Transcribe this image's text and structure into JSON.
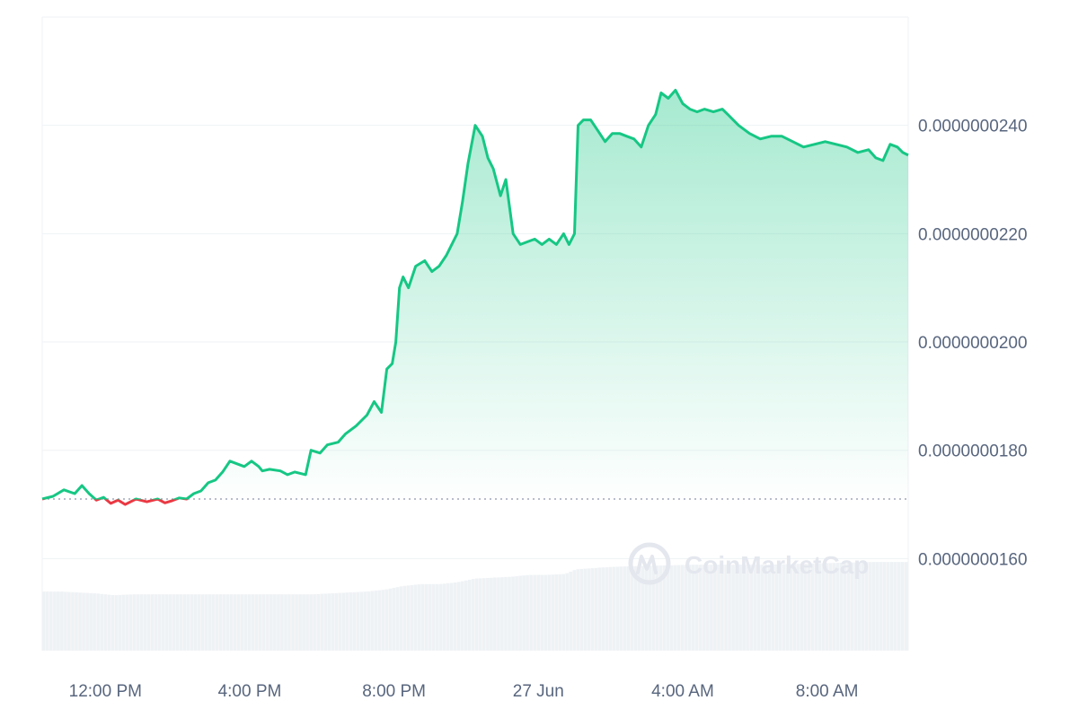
{
  "chart_data": {
    "type": "line",
    "series_color_up": "#16c784",
    "series_color_down": "#ea3943",
    "baseline": 1.71e-08,
    "ylim": [
      1.43e-08,
      2.6e-08
    ],
    "y_tick_values": [
      1.6e-08,
      1.8e-08,
      2e-08,
      2.2e-08,
      2.4e-08
    ],
    "y_tick_labels": [
      "0.0000000160",
      "0.0000000180",
      "0.0000000200",
      "0.0000000220",
      "0.0000000240"
    ],
    "x_tick_labels": [
      "12:00 PM",
      "4:00 PM",
      "8:00 PM",
      "27 Jun",
      "4:00 AM",
      "8:00 AM"
    ],
    "x_tick_hours": [
      1.75,
      5.75,
      9.75,
      13.75,
      17.75,
      21.75
    ],
    "x_range_hours": [
      0,
      24
    ],
    "grid": true,
    "price_series": [
      [
        0.0,
        1.71e-08
      ],
      [
        0.3,
        1.715e-08
      ],
      [
        0.6,
        1.727e-08
      ],
      [
        0.9,
        1.72e-08
      ],
      [
        1.1,
        1.735e-08
      ],
      [
        1.3,
        1.72e-08
      ],
      [
        1.5,
        1.708e-08
      ],
      [
        1.7,
        1.713e-08
      ],
      [
        1.9,
        1.702e-08
      ],
      [
        2.1,
        1.708e-08
      ],
      [
        2.3,
        1.7e-08
      ],
      [
        2.6,
        1.71e-08
      ],
      [
        2.9,
        1.705e-08
      ],
      [
        3.2,
        1.71e-08
      ],
      [
        3.4,
        1.703e-08
      ],
      [
        3.6,
        1.707e-08
      ],
      [
        3.8,
        1.712e-08
      ],
      [
        4.0,
        1.71e-08
      ],
      [
        4.2,
        1.72e-08
      ],
      [
        4.4,
        1.725e-08
      ],
      [
        4.6,
        1.74e-08
      ],
      [
        4.8,
        1.745e-08
      ],
      [
        5.0,
        1.76e-08
      ],
      [
        5.2,
        1.78e-08
      ],
      [
        5.4,
        1.775e-08
      ],
      [
        5.6,
        1.77e-08
      ],
      [
        5.8,
        1.78e-08
      ],
      [
        6.0,
        1.77e-08
      ],
      [
        6.1,
        1.762e-08
      ],
      [
        6.3,
        1.765e-08
      ],
      [
        6.6,
        1.762e-08
      ],
      [
        6.8,
        1.755e-08
      ],
      [
        7.0,
        1.76e-08
      ],
      [
        7.3,
        1.755e-08
      ],
      [
        7.45,
        1.8e-08
      ],
      [
        7.7,
        1.795e-08
      ],
      [
        7.9,
        1.81e-08
      ],
      [
        8.2,
        1.815e-08
      ],
      [
        8.4,
        1.83e-08
      ],
      [
        8.7,
        1.845e-08
      ],
      [
        9.0,
        1.865e-08
      ],
      [
        9.2,
        1.89e-08
      ],
      [
        9.4,
        1.87e-08
      ],
      [
        9.55,
        1.95e-08
      ],
      [
        9.7,
        1.96e-08
      ],
      [
        9.8,
        2e-08
      ],
      [
        9.9,
        2.1e-08
      ],
      [
        10.0,
        2.12e-08
      ],
      [
        10.15,
        2.1e-08
      ],
      [
        10.35,
        2.14e-08
      ],
      [
        10.6,
        2.15e-08
      ],
      [
        10.8,
        2.13e-08
      ],
      [
        11.0,
        2.14e-08
      ],
      [
        11.2,
        2.16e-08
      ],
      [
        11.35,
        2.18e-08
      ],
      [
        11.5,
        2.2e-08
      ],
      [
        11.65,
        2.26e-08
      ],
      [
        11.8,
        2.33e-08
      ],
      [
        12.0,
        2.4e-08
      ],
      [
        12.2,
        2.38e-08
      ],
      [
        12.35,
        2.34e-08
      ],
      [
        12.5,
        2.32e-08
      ],
      [
        12.7,
        2.27e-08
      ],
      [
        12.85,
        2.3e-08
      ],
      [
        13.05,
        2.2e-08
      ],
      [
        13.25,
        2.18e-08
      ],
      [
        13.45,
        2.185e-08
      ],
      [
        13.65,
        2.19e-08
      ],
      [
        13.85,
        2.18e-08
      ],
      [
        14.05,
        2.19e-08
      ],
      [
        14.25,
        2.18e-08
      ],
      [
        14.45,
        2.2e-08
      ],
      [
        14.6,
        2.18e-08
      ],
      [
        14.75,
        2.2e-08
      ],
      [
        14.85,
        2.4e-08
      ],
      [
        15.0,
        2.41e-08
      ],
      [
        15.2,
        2.41e-08
      ],
      [
        15.4,
        2.39e-08
      ],
      [
        15.6,
        2.37e-08
      ],
      [
        15.8,
        2.385e-08
      ],
      [
        16.0,
        2.385e-08
      ],
      [
        16.2,
        2.38e-08
      ],
      [
        16.4,
        2.375e-08
      ],
      [
        16.6,
        2.36e-08
      ],
      [
        16.8,
        2.4e-08
      ],
      [
        17.0,
        2.42e-08
      ],
      [
        17.15,
        2.46e-08
      ],
      [
        17.35,
        2.45e-08
      ],
      [
        17.55,
        2.465e-08
      ],
      [
        17.75,
        2.44e-08
      ],
      [
        17.95,
        2.43e-08
      ],
      [
        18.15,
        2.425e-08
      ],
      [
        18.35,
        2.43e-08
      ],
      [
        18.6,
        2.425e-08
      ],
      [
        18.85,
        2.43e-08
      ],
      [
        19.0,
        2.42e-08
      ],
      [
        19.3,
        2.4e-08
      ],
      [
        19.6,
        2.385e-08
      ],
      [
        19.9,
        2.375e-08
      ],
      [
        20.2,
        2.38e-08
      ],
      [
        20.5,
        2.38e-08
      ],
      [
        20.8,
        2.37e-08
      ],
      [
        21.1,
        2.36e-08
      ],
      [
        21.4,
        2.365e-08
      ],
      [
        21.7,
        2.37e-08
      ],
      [
        22.0,
        2.365e-08
      ],
      [
        22.3,
        2.36e-08
      ],
      [
        22.6,
        2.35e-08
      ],
      [
        22.9,
        2.355e-08
      ],
      [
        23.1,
        2.34e-08
      ],
      [
        23.3,
        2.335e-08
      ],
      [
        23.5,
        2.365e-08
      ],
      [
        23.7,
        2.36e-08
      ],
      [
        23.85,
        2.35e-08
      ],
      [
        24.0,
        2.345e-08
      ]
    ],
    "volume_series": [
      [
        0.0,
        0.64
      ],
      [
        0.5,
        0.64
      ],
      [
        1.0,
        0.63
      ],
      [
        1.5,
        0.62
      ],
      [
        2.0,
        0.6
      ],
      [
        2.5,
        0.61
      ],
      [
        3.0,
        0.61
      ],
      [
        4.0,
        0.61
      ],
      [
        5.0,
        0.61
      ],
      [
        6.0,
        0.61
      ],
      [
        7.0,
        0.61
      ],
      [
        7.5,
        0.61
      ],
      [
        8.0,
        0.62
      ],
      [
        8.5,
        0.63
      ],
      [
        9.0,
        0.64
      ],
      [
        9.5,
        0.66
      ],
      [
        10.0,
        0.7
      ],
      [
        10.5,
        0.72
      ],
      [
        11.0,
        0.72
      ],
      [
        11.5,
        0.74
      ],
      [
        12.0,
        0.78
      ],
      [
        12.5,
        0.79
      ],
      [
        13.0,
        0.8
      ],
      [
        13.5,
        0.82
      ],
      [
        14.0,
        0.82
      ],
      [
        14.5,
        0.83
      ],
      [
        14.8,
        0.88
      ],
      [
        15.5,
        0.9
      ],
      [
        16.0,
        0.91
      ],
      [
        17.0,
        0.92
      ],
      [
        18.0,
        0.93
      ],
      [
        19.0,
        0.93
      ],
      [
        20.0,
        0.93
      ],
      [
        21.0,
        0.94
      ],
      [
        22.0,
        0.95
      ],
      [
        23.0,
        0.96
      ],
      [
        24.0,
        0.96
      ]
    ]
  },
  "watermark": {
    "text": "CoinMarketCap"
  }
}
